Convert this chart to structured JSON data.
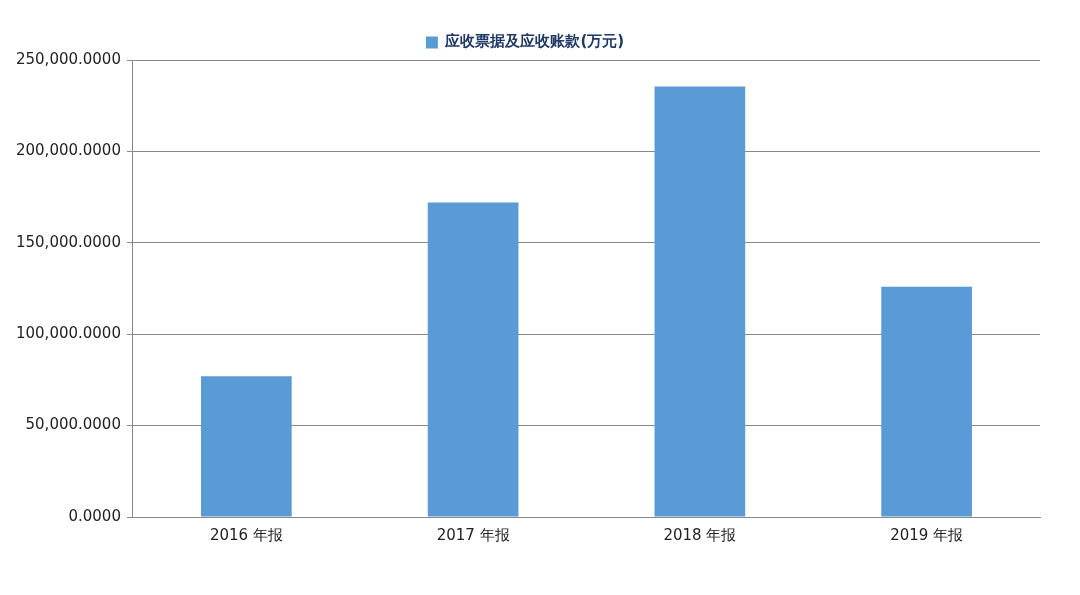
{
  "chart_data": {
    "type": "bar",
    "categories": [
      "2016 年报",
      "2017 年报",
      "2018 年报",
      "2019 年报"
    ],
    "series": [
      {
        "name": "应收票据及应收账款(万元)",
        "color": "#5b9bd5",
        "values": [
          77000,
          172000,
          235500,
          126000
        ]
      }
    ],
    "ylim": [
      0,
      250000
    ],
    "yticks": [
      {
        "value": 0,
        "label": "0.0000"
      },
      {
        "value": 50000,
        "label": "50,000.0000"
      },
      {
        "value": 100000,
        "label": "100,000.0000"
      },
      {
        "value": 150000,
        "label": "150,000.0000"
      },
      {
        "value": 200000,
        "label": "200,000.0000"
      },
      {
        "value": 250000,
        "label": "250,000.0000"
      }
    ],
    "grid": "y",
    "legend": "top"
  }
}
